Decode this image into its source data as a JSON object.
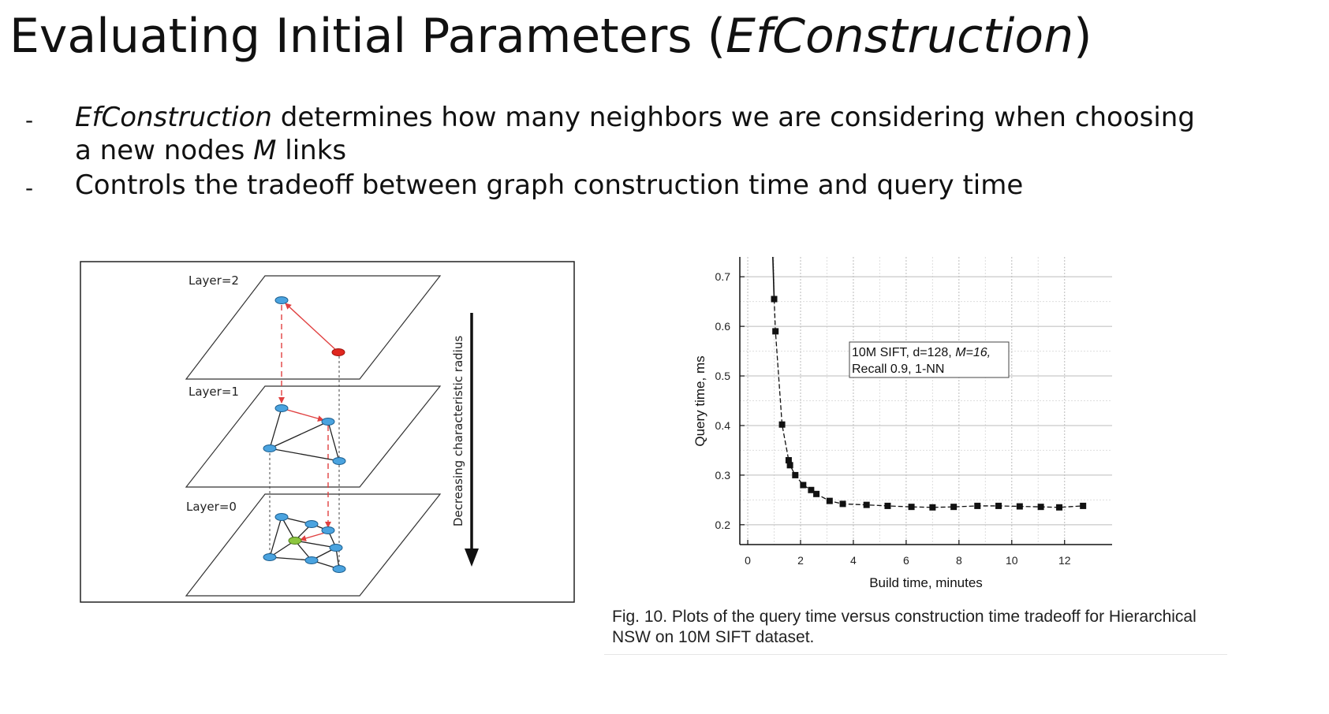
{
  "title": {
    "prefix": "Evaluating Initial Parameters (",
    "italic": "EfConstruction",
    "suffix": ")"
  },
  "bullets": [
    {
      "dash": "-",
      "italic": "EfConstruction",
      "text": " determines how many neighbors we are considering when choosing a new nodes ",
      "italic2": "M",
      "text2": " links"
    },
    {
      "dash": "-",
      "text": "Controls the tradeoff between graph construction time and query time"
    }
  ],
  "hnsw_diagram": {
    "layers": [
      "Layer=2",
      "Layer=1",
      "Layer=0"
    ],
    "arrow_label": "Decreasing characteristic radius",
    "colors": {
      "node": "#4aa3df",
      "entry": "#e0271f",
      "target": "#8dc63f",
      "search_edge": "#e04040"
    }
  },
  "chart_data": {
    "type": "line",
    "xlabel": "Build time, minutes",
    "ylabel": "Query time, ms",
    "xlim": [
      -0.3,
      13.8
    ],
    "ylim": [
      0.16,
      0.74
    ],
    "xticks": [
      0,
      2,
      4,
      6,
      8,
      10,
      12
    ],
    "yticks": [
      0.2,
      0.3,
      0.4,
      0.5,
      0.6,
      0.7
    ],
    "grid": true,
    "annotation": {
      "line1_plain": "10M SIFT, d=128, ",
      "line1_italic": "M=16,",
      "line2": "Recall 0.9, 1-NN"
    },
    "x": [
      1.0,
      1.05,
      1.3,
      1.55,
      1.6,
      1.8,
      2.1,
      2.4,
      2.6,
      3.1,
      3.6,
      4.5,
      5.3,
      6.2,
      7.0,
      7.8,
      8.7,
      9.5,
      10.3,
      11.1,
      11.8,
      12.7
    ],
    "y": [
      0.655,
      0.59,
      0.402,
      0.33,
      0.32,
      0.3,
      0.28,
      0.27,
      0.262,
      0.248,
      0.242,
      0.24,
      0.238,
      0.236,
      0.235,
      0.236,
      0.238,
      0.238,
      0.237,
      0.236,
      0.235,
      0.238
    ],
    "leading_curve": {
      "x": [
        0.95,
        1.0
      ],
      "y": [
        0.74,
        0.655
      ]
    }
  },
  "caption": "Fig. 10. Plots of the query time versus construction time tradeoff for Hierarchical NSW on 10M SIFT dataset."
}
